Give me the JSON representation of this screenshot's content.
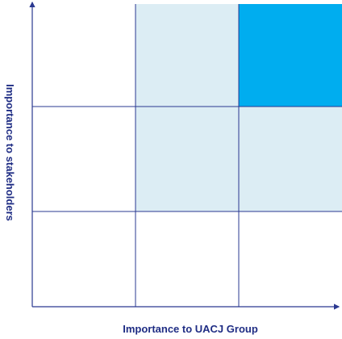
{
  "axes": {
    "x_label": "Importance to UACJ Group",
    "y_label": "Importance to stakeholders"
  }
}
